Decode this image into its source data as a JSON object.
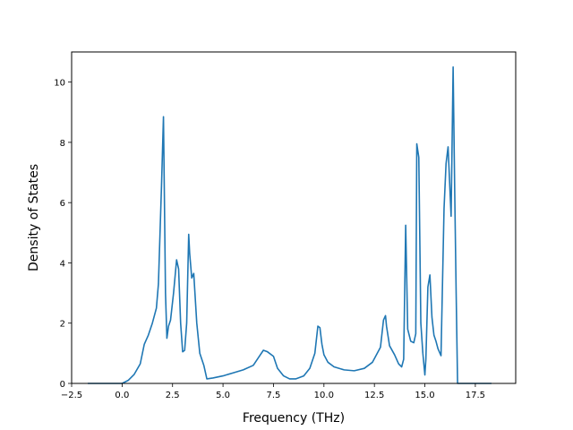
{
  "chart_data": {
    "type": "line",
    "title": "",
    "xlabel": "Frequency (THz)",
    "ylabel": "Density of States",
    "xlim": [
      -2.5,
      19.5
    ],
    "ylim": [
      0,
      11
    ],
    "x_ticks": [
      -2.5,
      0.0,
      2.5,
      5.0,
      7.5,
      10.0,
      12.5,
      15.0,
      17.5
    ],
    "x_tick_labels": [
      "−2.5",
      "0.0",
      "2.5",
      "5.0",
      "7.5",
      "10.0",
      "12.5",
      "15.0",
      "17.5"
    ],
    "y_ticks": [
      0,
      2,
      4,
      6,
      8,
      10
    ],
    "y_tick_labels": [
      "0",
      "2",
      "4",
      "6",
      "8",
      "10"
    ],
    "grid": false,
    "legend": "none",
    "series": [
      {
        "color": "#1f77b4",
        "x": [
          -1.7,
          0.0,
          0.3,
          0.6,
          0.9,
          1.1,
          1.3,
          1.5,
          1.7,
          1.8,
          1.95,
          2.05,
          2.15,
          2.22,
          2.3,
          2.4,
          2.55,
          2.7,
          2.8,
          2.9,
          3.0,
          3.1,
          3.2,
          3.3,
          3.35,
          3.45,
          3.55,
          3.7,
          3.85,
          4.05,
          4.2,
          4.5,
          5.0,
          5.5,
          6.0,
          6.5,
          6.8,
          7.0,
          7.2,
          7.5,
          7.7,
          8.0,
          8.3,
          8.6,
          9.0,
          9.3,
          9.55,
          9.7,
          9.8,
          9.9,
          10.0,
          10.2,
          10.5,
          11.0,
          11.5,
          12.0,
          12.4,
          12.8,
          12.95,
          13.05,
          13.1,
          13.25,
          13.5,
          13.7,
          13.85,
          13.95,
          14.05,
          14.15,
          14.3,
          14.45,
          14.55,
          14.6,
          14.7,
          14.8,
          14.9,
          15.0,
          15.05,
          15.15,
          15.25,
          15.35,
          15.45,
          15.55,
          15.65,
          15.8,
          15.95,
          16.05,
          16.15,
          16.3,
          16.4,
          16.48,
          16.55,
          16.62,
          16.75,
          17.0,
          18.3
        ],
        "y": [
          0.0,
          0.0,
          0.1,
          0.3,
          0.65,
          1.3,
          1.6,
          2.0,
          2.5,
          3.3,
          6.5,
          8.85,
          3.0,
          1.5,
          1.9,
          2.1,
          3.0,
          4.1,
          3.8,
          2.0,
          1.05,
          1.1,
          2.0,
          4.95,
          4.3,
          3.5,
          3.65,
          2.0,
          1.0,
          0.6,
          0.15,
          0.18,
          0.25,
          0.35,
          0.45,
          0.6,
          0.9,
          1.1,
          1.05,
          0.9,
          0.5,
          0.25,
          0.15,
          0.15,
          0.25,
          0.5,
          1.0,
          1.9,
          1.85,
          1.3,
          0.95,
          0.7,
          0.55,
          0.45,
          0.42,
          0.5,
          0.7,
          1.2,
          2.1,
          2.25,
          1.9,
          1.25,
          0.95,
          0.65,
          0.55,
          0.8,
          5.25,
          1.8,
          1.4,
          1.35,
          1.65,
          7.95,
          7.5,
          2.0,
          1.0,
          0.28,
          0.8,
          3.2,
          3.6,
          2.2,
          1.6,
          1.4,
          1.15,
          0.92,
          5.8,
          7.3,
          7.85,
          5.55,
          10.5,
          6.3,
          3.0,
          0.0,
          0.0,
          0.0,
          0.0
        ]
      }
    ]
  }
}
